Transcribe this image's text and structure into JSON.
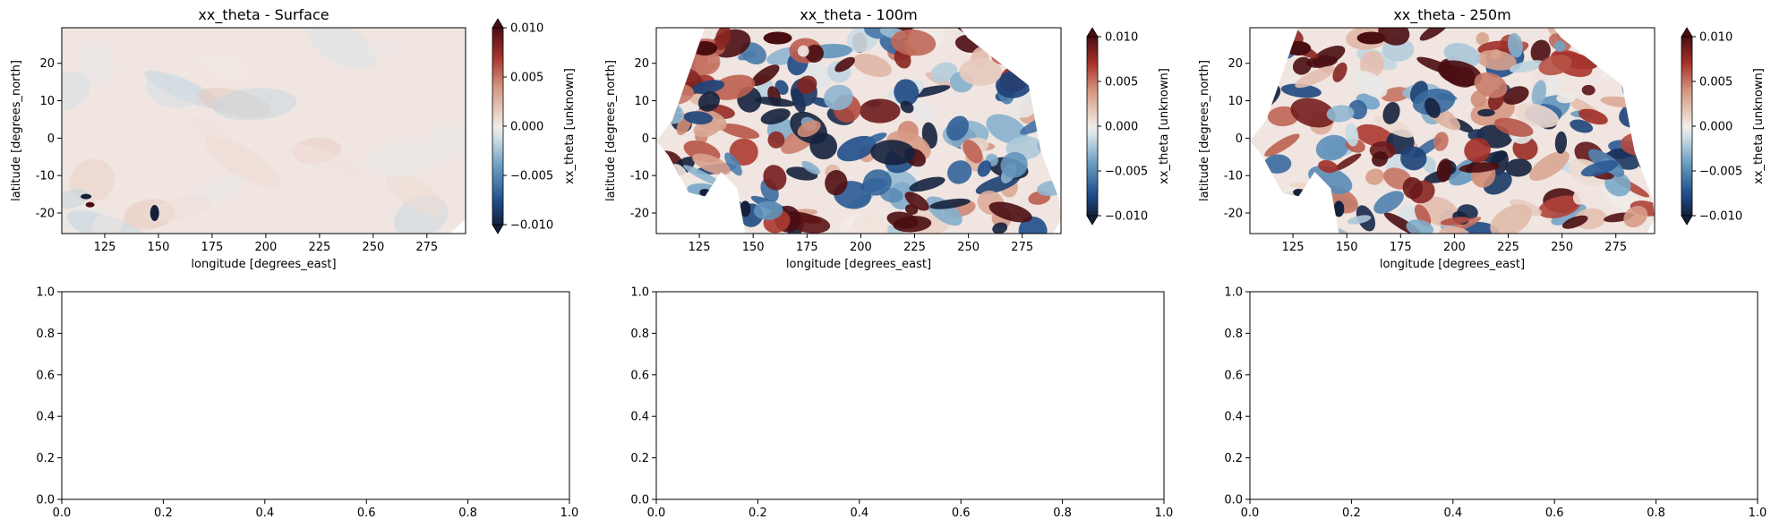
{
  "chart_data": [
    {
      "type": "heatmap",
      "title": "xx_theta - Surface",
      "xlabel": "longitude [degrees_east]",
      "ylabel": "latitude [degrees_north]",
      "xlim": [
        105,
        293
      ],
      "ylim": [
        -25.5,
        29.5
      ],
      "xticks": [
        125,
        150,
        175,
        200,
        225,
        250,
        275
      ],
      "yticks": [
        -20,
        -10,
        0,
        10,
        20
      ],
      "colorbar": {
        "label": "xx_theta [unknown]",
        "min": -0.01,
        "max": 0.01,
        "ticks": [
          "−0.010",
          "−0.005",
          "0.000",
          "0.005",
          "0.010"
        ],
        "extend": "both",
        "colormap": "diverging blue-white-red",
        "colors": [
          "#14213d",
          "#1f4e8c",
          "#8fb3cf",
          "#f2ece8",
          "#d9a08a",
          "#a8322a",
          "#4a0d12"
        ]
      },
      "field_description_level": "weak",
      "notable_extremes": [
        "dark red/blue patches near lon 118 lat -17",
        "dark blue patch near lon 152 lat -21"
      ]
    },
    {
      "type": "heatmap",
      "title": "xx_theta - 100m",
      "xlabel": "longitude [degrees_east]",
      "ylabel": "latitude [degrees_north]",
      "xlim": [
        105,
        293
      ],
      "ylim": [
        -25.5,
        29.5
      ],
      "xticks": [
        125,
        150,
        175,
        200,
        225,
        250,
        275
      ],
      "yticks": [
        -20,
        -10,
        0,
        10,
        20
      ],
      "colorbar": {
        "label": "xx_theta [unknown]",
        "min": -0.01,
        "max": 0.01,
        "ticks": [
          "−0.010",
          "−0.005",
          "0.000",
          "0.005",
          "0.010"
        ],
        "extend": "both",
        "colormap": "diverging blue-white-red"
      },
      "field_description_level": "strong"
    },
    {
      "type": "heatmap",
      "title": "xx_theta - 250m",
      "xlabel": "longitude [degrees_east]",
      "ylabel": "latitude [degrees_north]",
      "xlim": [
        105,
        293
      ],
      "ylim": [
        -25.5,
        29.5
      ],
      "xticks": [
        125,
        150,
        175,
        200,
        225,
        250,
        275
      ],
      "yticks": [
        -20,
        -10,
        0,
        10,
        20
      ],
      "colorbar": {
        "label": "xx_theta [unknown]",
        "min": -0.01,
        "max": 0.01,
        "ticks": [
          "−0.010",
          "−0.005",
          "0.000",
          "0.005",
          "0.010"
        ],
        "extend": "both",
        "colormap": "diverging blue-white-red"
      },
      "field_description_level": "strong"
    },
    {
      "type": "scatter",
      "empty": true,
      "title": "",
      "xlim": [
        0,
        1
      ],
      "ylim": [
        0,
        1
      ],
      "xticks": [
        "0.0",
        "0.2",
        "0.4",
        "0.6",
        "0.8",
        "1.0"
      ],
      "yticks": [
        "0.0",
        "0.2",
        "0.4",
        "0.6",
        "0.8",
        "1.0"
      ]
    },
    {
      "type": "scatter",
      "empty": true,
      "title": "",
      "xlim": [
        0,
        1
      ],
      "ylim": [
        0,
        1
      ],
      "xticks": [
        "0.0",
        "0.2",
        "0.4",
        "0.6",
        "0.8",
        "1.0"
      ],
      "yticks": [
        "0.0",
        "0.2",
        "0.4",
        "0.6",
        "0.8",
        "1.0"
      ]
    },
    {
      "type": "scatter",
      "empty": true,
      "title": "",
      "xlim": [
        0,
        1
      ],
      "ylim": [
        0,
        1
      ],
      "xticks": [
        "0.0",
        "0.2",
        "0.4",
        "0.6",
        "0.8",
        "1.0"
      ],
      "yticks": [
        "0.0",
        "0.2",
        "0.4",
        "0.6",
        "0.8",
        "1.0"
      ]
    }
  ]
}
